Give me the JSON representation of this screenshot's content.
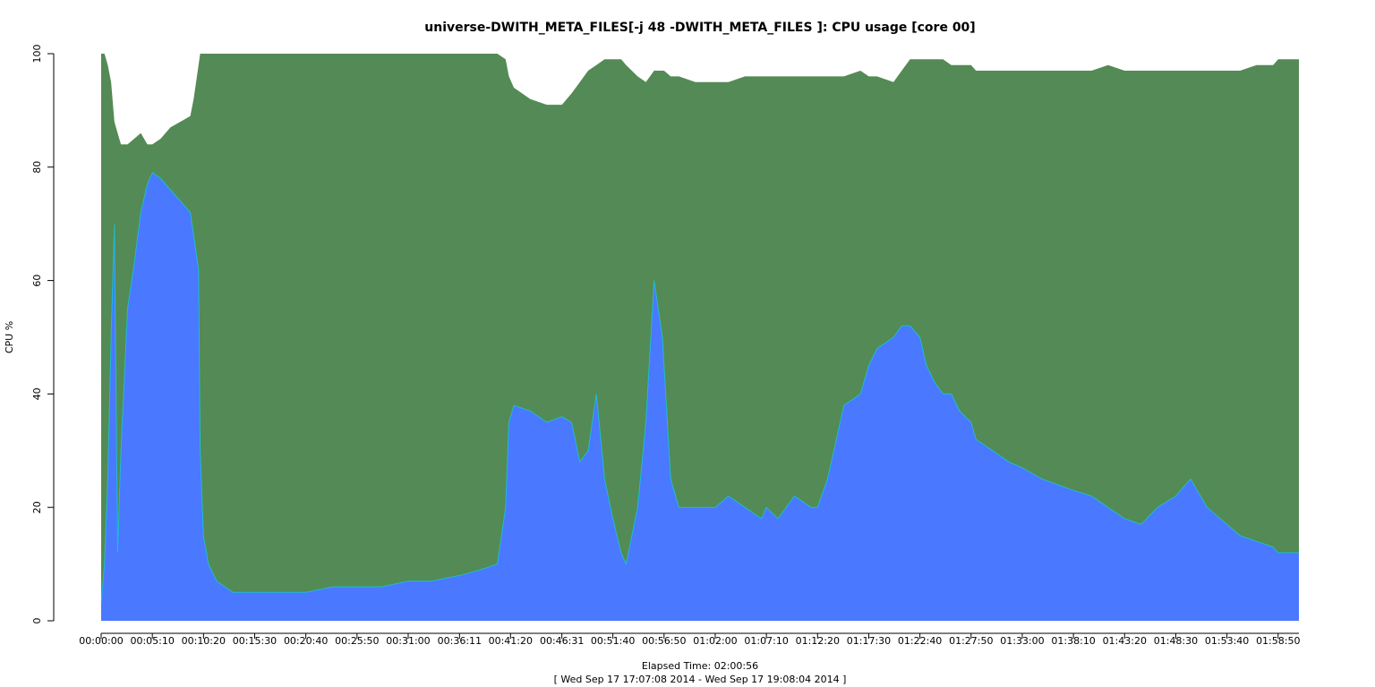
{
  "chart_data": {
    "type": "area",
    "title": "universe-DWITH_META_FILES[-j 48 -DWITH_META_FILES ]: CPU usage [core 00]",
    "xlabel": "Elapsed Time: 02:00:56",
    "xlabel2": "[ Wed Sep 17 17:07:08 2014 - Wed Sep 17 19:08:04 2014 ]",
    "ylabel": "CPU %",
    "ylim": [
      0,
      100
    ],
    "xlim_seconds": [
      0,
      7256
    ],
    "y_ticks": [
      "0",
      "20",
      "40",
      "60",
      "80",
      "100"
    ],
    "x_ticks": [
      "00:00:00",
      "00:05:10",
      "00:10:20",
      "00:15:30",
      "00:20:40",
      "00:25:50",
      "00:31:00",
      "00:36:11",
      "00:41:20",
      "00:46:31",
      "00:51:40",
      "00:56:50",
      "01:02:00",
      "01:07:10",
      "01:12:20",
      "01:17:30",
      "01:22:40",
      "01:27:50",
      "01:33:00",
      "01:38:10",
      "01:43:20",
      "01:48:30",
      "01:53:40",
      "01:58:50"
    ],
    "x_tick_seconds": [
      0,
      310,
      620,
      930,
      1240,
      1550,
      1860,
      2171,
      2480,
      2791,
      3100,
      3410,
      3720,
      4030,
      4340,
      4650,
      4960,
      5270,
      5580,
      5890,
      6200,
      6510,
      6820,
      7130
    ],
    "colors": {
      "top": "#548a55",
      "bottom": "#4a78ff",
      "edge": "#00e5e5"
    },
    "series": [
      {
        "x": [
          0,
          20,
          40,
          60,
          80,
          100,
          120,
          160,
          200,
          240,
          280,
          310,
          360,
          420,
          480,
          540,
          560,
          590,
          600,
          620,
          650,
          700,
          800,
          930,
          1100,
          1240,
          1400,
          1550,
          1700,
          1860,
          2000,
          2171,
          2300,
          2400,
          2450,
          2470,
          2500,
          2600,
          2700,
          2791,
          2850,
          2900,
          2950,
          3000,
          3050,
          3100,
          3150,
          3180,
          3250,
          3300,
          3350,
          3400,
          3410,
          3450,
          3500,
          3600,
          3720,
          3800,
          3900,
          4000,
          4030,
          4100,
          4200,
          4300,
          4340,
          4400,
          4500,
          4600,
          4650,
          4700,
          4800,
          4850,
          4900,
          4960,
          5000,
          5050,
          5100,
          5150,
          5200,
          5270,
          5300,
          5400,
          5500,
          5580,
          5700,
          5890,
          6000,
          6100,
          6200,
          6300,
          6400,
          6510,
          6600,
          6700,
          6820,
          6900,
          7000,
          7100,
          7130,
          7200,
          7256
        ],
        "values": [
          100,
          100,
          98,
          95,
          88,
          86,
          84,
          84,
          85,
          86,
          84,
          84,
          85,
          87,
          88,
          89,
          92,
          98,
          100,
          100,
          100,
          100,
          100,
          100,
          100,
          100,
          100,
          100,
          100,
          100,
          100,
          100,
          100,
          100,
          99,
          96,
          94,
          92,
          91,
          91,
          93,
          95,
          97,
          98,
          99,
          99,
          99,
          98,
          96,
          95,
          97,
          97,
          97,
          96,
          96,
          95,
          95,
          95,
          96,
          96,
          96,
          96,
          96,
          96,
          96,
          96,
          96,
          97,
          96,
          96,
          95,
          97,
          99,
          99,
          99,
          99,
          99,
          98,
          98,
          98,
          97,
          97,
          97,
          97,
          97,
          97,
          97,
          98,
          97,
          97,
          97,
          97,
          97,
          97,
          97,
          97,
          98,
          98,
          99,
          99,
          99
        ]
      },
      {
        "x": [
          0,
          20,
          40,
          60,
          80,
          100,
          120,
          160,
          200,
          240,
          280,
          310,
          360,
          420,
          480,
          540,
          560,
          590,
          600,
          620,
          650,
          700,
          800,
          930,
          1100,
          1240,
          1400,
          1550,
          1700,
          1860,
          2000,
          2171,
          2300,
          2400,
          2450,
          2470,
          2500,
          2600,
          2700,
          2791,
          2850,
          2900,
          2950,
          3000,
          3050,
          3100,
          3150,
          3180,
          3250,
          3300,
          3350,
          3400,
          3410,
          3450,
          3500,
          3600,
          3720,
          3800,
          3900,
          4000,
          4030,
          4100,
          4200,
          4300,
          4340,
          4400,
          4500,
          4600,
          4650,
          4700,
          4800,
          4850,
          4900,
          4960,
          5000,
          5050,
          5100,
          5150,
          5200,
          5270,
          5300,
          5400,
          5500,
          5580,
          5700,
          5890,
          6000,
          6100,
          6200,
          6300,
          6400,
          6510,
          6600,
          6700,
          6820,
          6900,
          7000,
          7100,
          7130,
          7200,
          7256
        ],
        "values": [
          3,
          10,
          25,
          50,
          70,
          12,
          30,
          55,
          63,
          72,
          77,
          79,
          78,
          76,
          74,
          72,
          68,
          62,
          30,
          15,
          10,
          7,
          5,
          5,
          5,
          5,
          6,
          6,
          6,
          7,
          7,
          8,
          9,
          10,
          20,
          35,
          38,
          37,
          35,
          36,
          35,
          28,
          30,
          40,
          25,
          18,
          12,
          10,
          20,
          35,
          60,
          50,
          45,
          25,
          20,
          20,
          20,
          22,
          20,
          18,
          20,
          18,
          22,
          20,
          20,
          25,
          38,
          40,
          45,
          48,
          50,
          52,
          52,
          50,
          45,
          42,
          40,
          40,
          37,
          35,
          32,
          30,
          28,
          27,
          25,
          23,
          22,
          20,
          18,
          17,
          20,
          22,
          25,
          20,
          17,
          15,
          14,
          13,
          12,
          12,
          12
        ]
      }
    ]
  }
}
